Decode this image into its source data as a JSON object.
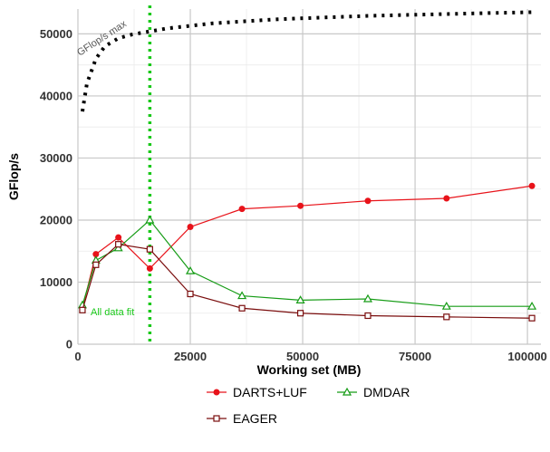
{
  "chart_data": {
    "type": "line",
    "xlabel": "Working set (MB)",
    "ylabel": "GFlop/s",
    "xlim": [
      0,
      103000
    ],
    "ylim": [
      0,
      54000
    ],
    "x_ticks": [
      0,
      25000,
      50000,
      75000,
      100000
    ],
    "x_tick_labels": [
      "0",
      "25000",
      "50000",
      "75000",
      "100000"
    ],
    "y_ticks": [
      0,
      10000,
      20000,
      30000,
      40000,
      50000
    ],
    "y_tick_labels": [
      "0",
      "10000",
      "20000",
      "30000",
      "40000",
      "50000"
    ],
    "grid": true,
    "legend_position": "bottom",
    "series": [
      {
        "name": "DARTS+LUF",
        "color": "#e8131a",
        "marker": "filled-circle",
        "x": [
          1000,
          4000,
          9000,
          16000,
          25000,
          36500,
          49500,
          64500,
          82000,
          101000
        ],
        "values": [
          5800,
          14500,
          17200,
          12200,
          18900,
          21800,
          22300,
          23100,
          23500,
          25500
        ]
      },
      {
        "name": "DMDAR",
        "color": "#169c16",
        "marker": "open-triangle",
        "x": [
          1000,
          4000,
          9000,
          16000,
          25000,
          36500,
          49500,
          64500,
          82000,
          101000
        ],
        "values": [
          6300,
          13500,
          15500,
          20000,
          11800,
          7800,
          7100,
          7300,
          6100,
          6100
        ]
      },
      {
        "name": "EAGER",
        "color": "#7a0d0d",
        "marker": "open-square",
        "x": [
          1000,
          4000,
          9000,
          16000,
          25000,
          36500,
          49500,
          64500,
          82000,
          101000
        ],
        "values": [
          5500,
          12800,
          16100,
          15300,
          8100,
          5800,
          5000,
          4600,
          4400,
          4200
        ]
      }
    ],
    "max_line": {
      "label": "GFlop/s max",
      "color": "#000000",
      "x": [
        1000,
        2000,
        4000,
        6000,
        9000,
        12000,
        16000,
        20000,
        25000,
        30000,
        36500,
        43000,
        49500,
        57000,
        64500,
        73000,
        82000,
        91000,
        101000
      ],
      "values": [
        37500,
        42000,
        46000,
        48000,
        49300,
        49900,
        50400,
        50900,
        51300,
        51700,
        52000,
        52300,
        52500,
        52700,
        52900,
        53050,
        53200,
        53350,
        53500
      ]
    },
    "fit_line": {
      "label": "All data fit",
      "color": "#19c819",
      "x": 16000
    }
  }
}
